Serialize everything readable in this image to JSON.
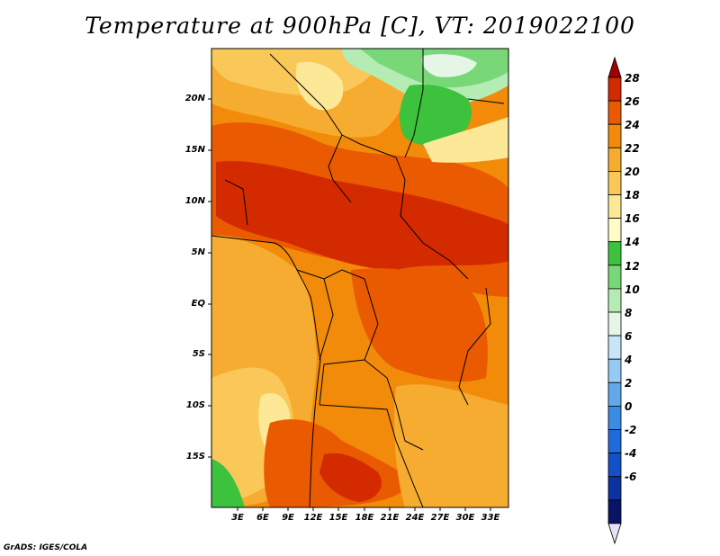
{
  "title": "Temperature at 900hPa [C], VT: 2019022100",
  "footer": "GrADS: IGES/COLA",
  "map": {
    "lat_labels": [
      "20N",
      "15N",
      "10N",
      "5N",
      "EQ",
      "5S",
      "10S",
      "15S"
    ],
    "lon_labels": [
      "3E",
      "6E",
      "9E",
      "12E",
      "15E",
      "18E",
      "21E",
      "24E",
      "27E",
      "30E",
      "33E"
    ]
  },
  "colorbar": {
    "labels": [
      "28",
      "26",
      "24",
      "22",
      "20",
      "18",
      "16",
      "14",
      "12",
      "10",
      "8",
      "6",
      "4",
      "2",
      "0",
      "-2",
      "-4",
      "-6"
    ],
    "colors": [
      "#a00000",
      "#d42a00",
      "#ea5a00",
      "#f28a0a",
      "#f6ac30",
      "#fac858",
      "#fde898",
      "#fffcc8",
      "#3cc23c",
      "#78d878",
      "#b4ecb4",
      "#e6f6e6",
      "#c8e6f8",
      "#96caf2",
      "#64a8ec",
      "#3c8ce6",
      "#1e6adc",
      "#1450c8",
      "#0a32a0",
      "#0a1464",
      "#e2e2f4"
    ]
  },
  "palette": {
    "red": "#d42a00",
    "orange": "#ea5a00",
    "orange2": "#f28a0a",
    "amber": "#f6ac30",
    "yellow": "#fac858",
    "pale": "#fde898",
    "green": "#3cc23c",
    "lightgreen": "#78d878",
    "palegreen": "#b4ecb4"
  }
}
